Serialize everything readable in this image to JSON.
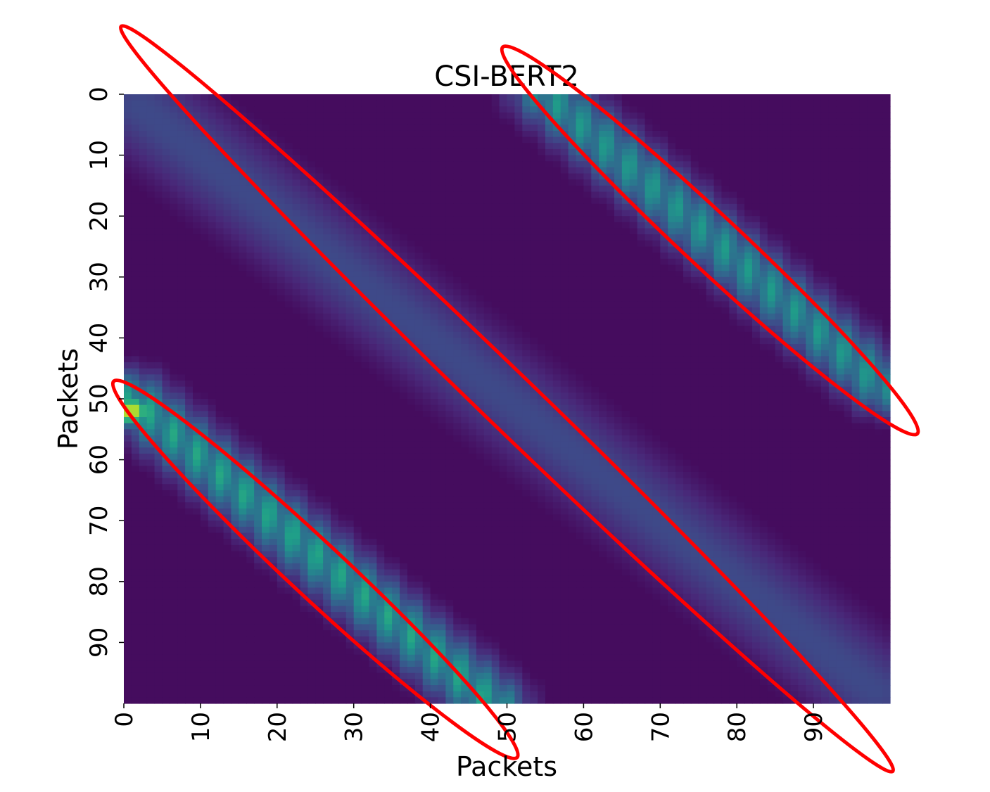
{
  "chart_data": {
    "type": "heatmap",
    "title": "CSI-BERT2",
    "xlabel": "Packets",
    "ylabel": "Packets",
    "x_range": [
      0,
      100
    ],
    "y_range": [
      0,
      100
    ],
    "y_inverted": true,
    "grid": false,
    "colorbar": false,
    "colormap": "viridis",
    "x_ticks": [
      0,
      10,
      20,
      30,
      40,
      50,
      60,
      70,
      80,
      90
    ],
    "y_ticks": [
      0,
      10,
      20,
      30,
      40,
      50,
      60,
      70,
      80,
      90
    ],
    "bands": [
      {
        "name": "upper-right",
        "from": [
          55,
          0
        ],
        "to": [
          99,
          48
        ],
        "peak": 0.55
      },
      {
        "name": "main-diagonal",
        "from": [
          2,
          2
        ],
        "to": [
          98,
          98
        ],
        "peak": 0.22
      },
      {
        "name": "lower-left",
        "from": [
          1,
          50
        ],
        "to": [
          48,
          100
        ],
        "peak": 0.6
      }
    ],
    "hotspot": {
      "x": 1,
      "y": 52,
      "value": 0.95
    },
    "annotations": [
      {
        "shape": "ellipse",
        "color": "#ff0000",
        "cx": 76.5,
        "cy": 24,
        "major_axis_deg": 43
      },
      {
        "shape": "ellipse",
        "color": "#ff0000",
        "cx": 50,
        "cy": 50,
        "major_axis_deg": 44
      },
      {
        "shape": "ellipse",
        "color": "#ff0000",
        "cx": 25,
        "cy": 78,
        "major_axis_deg": 43
      }
    ]
  }
}
